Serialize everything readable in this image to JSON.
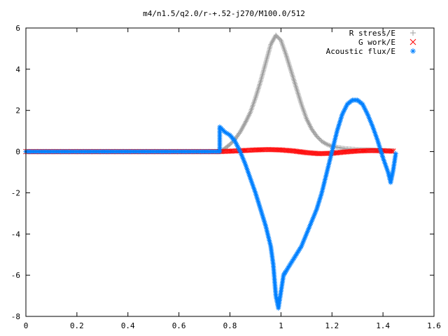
{
  "chart_data": {
    "type": "scatter",
    "title": "m4/n1.5/q2.0/r-+.52-j270/M100.0/512",
    "xlabel": "",
    "ylabel": "",
    "xlim": [
      0,
      1.6
    ],
    "ylim": [
      -8,
      6
    ],
    "x_ticks": [
      "0",
      "0.2",
      "0.4",
      "0.6",
      "0.8",
      "1",
      "1.2",
      "1.4",
      "1.6"
    ],
    "y_ticks": [
      "6",
      "4",
      "2",
      "0",
      "-2",
      "-4",
      "-6",
      "-8"
    ],
    "legend_position": "top-right",
    "grid": false,
    "series": [
      {
        "name": "R stress/E",
        "marker": "plus",
        "color": "#a0a0a0",
        "points": [
          [
            0.0,
            0.0
          ],
          [
            0.76,
            0.0
          ],
          [
            0.77,
            0.05
          ],
          [
            0.78,
            0.15
          ],
          [
            0.8,
            0.35
          ],
          [
            0.82,
            0.6
          ],
          [
            0.84,
            0.95
          ],
          [
            0.86,
            1.4
          ],
          [
            0.88,
            1.9
          ],
          [
            0.9,
            2.6
          ],
          [
            0.92,
            3.4
          ],
          [
            0.94,
            4.3
          ],
          [
            0.96,
            5.2
          ],
          [
            0.98,
            5.65
          ],
          [
            1.0,
            5.4
          ],
          [
            1.02,
            4.7
          ],
          [
            1.04,
            3.9
          ],
          [
            1.06,
            3.1
          ],
          [
            1.08,
            2.3
          ],
          [
            1.1,
            1.6
          ],
          [
            1.12,
            1.1
          ],
          [
            1.14,
            0.75
          ],
          [
            1.16,
            0.5
          ],
          [
            1.18,
            0.35
          ],
          [
            1.2,
            0.25
          ],
          [
            1.25,
            0.15
          ],
          [
            1.3,
            0.1
          ],
          [
            1.35,
            0.08
          ],
          [
            1.4,
            0.05
          ],
          [
            1.44,
            0.03
          ]
        ]
      },
      {
        "name": "G work/E",
        "marker": "cross",
        "color": "#ff0000",
        "points": [
          [
            0.0,
            0.0
          ],
          [
            0.76,
            0.0
          ],
          [
            0.8,
            0.02
          ],
          [
            0.85,
            0.05
          ],
          [
            0.9,
            0.08
          ],
          [
            0.95,
            0.1
          ],
          [
            1.0,
            0.08
          ],
          [
            1.05,
            0.03
          ],
          [
            1.1,
            -0.05
          ],
          [
            1.15,
            -0.1
          ],
          [
            1.2,
            -0.08
          ],
          [
            1.25,
            -0.02
          ],
          [
            1.3,
            0.03
          ],
          [
            1.35,
            0.05
          ],
          [
            1.4,
            0.04
          ],
          [
            1.44,
            0.02
          ]
        ]
      },
      {
        "name": "Acoustic flux/E",
        "marker": "star",
        "color": "#0080ff",
        "points": [
          [
            0.0,
            0.0
          ],
          [
            0.76,
            0.0
          ],
          [
            0.76,
            1.2
          ],
          [
            0.78,
            0.95
          ],
          [
            0.8,
            0.8
          ],
          [
            0.82,
            0.5
          ],
          [
            0.84,
            0.0
          ],
          [
            0.86,
            -0.6
          ],
          [
            0.88,
            -1.3
          ],
          [
            0.9,
            -2.0
          ],
          [
            0.92,
            -2.8
          ],
          [
            0.94,
            -3.6
          ],
          [
            0.96,
            -4.6
          ],
          [
            0.97,
            -5.5
          ],
          [
            0.98,
            -7.0
          ],
          [
            0.99,
            -7.6
          ],
          [
            1.0,
            -6.8
          ],
          [
            1.01,
            -6.0
          ],
          [
            1.02,
            -5.8
          ],
          [
            1.04,
            -5.4
          ],
          [
            1.06,
            -5.0
          ],
          [
            1.08,
            -4.6
          ],
          [
            1.1,
            -4.0
          ],
          [
            1.12,
            -3.4
          ],
          [
            1.14,
            -2.8
          ],
          [
            1.16,
            -2.0
          ],
          [
            1.18,
            -1.0
          ],
          [
            1.2,
            0.0
          ],
          [
            1.22,
            1.0
          ],
          [
            1.24,
            1.8
          ],
          [
            1.26,
            2.3
          ],
          [
            1.28,
            2.5
          ],
          [
            1.3,
            2.5
          ],
          [
            1.32,
            2.3
          ],
          [
            1.34,
            1.8
          ],
          [
            1.36,
            1.2
          ],
          [
            1.38,
            0.5
          ],
          [
            1.4,
            -0.3
          ],
          [
            1.42,
            -1.0
          ],
          [
            1.43,
            -1.5
          ],
          [
            1.44,
            -0.9
          ],
          [
            1.45,
            -0.1
          ]
        ]
      }
    ]
  },
  "colors": {
    "axis": "#000000",
    "background": "#ffffff"
  }
}
